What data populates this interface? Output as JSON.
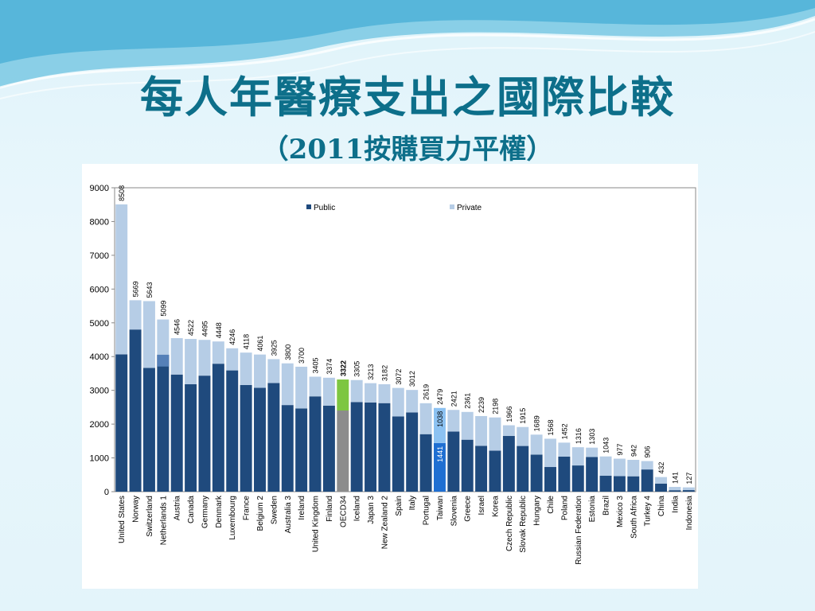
{
  "slide": {
    "title": "每人年醫療支出之國際比較",
    "subtitle": "（2011按購買力平權）"
  },
  "colors": {
    "public": "#1f4a7d",
    "private": "#b6cde6",
    "netherlands_public_extra": "#5580b8",
    "oecd_public": "#8c8c8c",
    "oecd_private": "#7dc641",
    "taiwan_public": "#1f6fd2",
    "taiwan_private": "#8cc2f2",
    "title": "#0d6f8a"
  },
  "chart_data": {
    "type": "bar",
    "stacked": true,
    "ylim": [
      0,
      9000
    ],
    "yticks": [
      0,
      1000,
      2000,
      3000,
      4000,
      5000,
      6000,
      7000,
      8000,
      9000
    ],
    "grid": false,
    "legend_position": "top",
    "legend": [
      "Public",
      "Private"
    ],
    "categories": [
      "United States",
      "Norway",
      "Switzerland",
      "Netherlands 1",
      "Austria",
      "Canada",
      "Germany",
      "Denmark",
      "Luxembourg",
      "France",
      "Belgium 2",
      "Sweden",
      "Australia 3",
      "Ireland",
      "United Kingdom",
      "Finland",
      "OECD34",
      "Iceland",
      "Japan 3",
      "New Zealand 2",
      "Spain",
      "Italy",
      "Portugal",
      "Taiwan",
      "Slovenia",
      "Greece",
      "Israel",
      "Korea",
      "Czech Republic",
      "Slovak Republic",
      "Hungary",
      "Chile",
      "Poland",
      "Russian Federation",
      "Estonia",
      "Brazil",
      "Mexico 3",
      "South Africa",
      "Turkey 4",
      "China",
      "India",
      "Indonesia"
    ],
    "series": [
      {
        "name": "Public",
        "values": [
          4066,
          4802,
          3665,
          4055,
          3469,
          3183,
          3436,
          3789,
          3591,
          3159,
          3076,
          3218,
          2565,
          2465,
          2822,
          2549,
          2403,
          2654,
          2642,
          2622,
          2227,
          2347,
          1703,
          1441,
          1780,
          1539,
          1358,
          1215,
          1649,
          1353,
          1097,
          730,
          1038,
          776,
          1025,
          471,
          459,
          455,
          657,
          240,
          43,
          46
        ]
      },
      {
        "name": "Private",
        "values": [
          4442,
          867,
          1978,
          1044,
          1077,
          1339,
          1059,
          659,
          655,
          959,
          985,
          707,
          1235,
          1235,
          583,
          825,
          919,
          651,
          571,
          560,
          845,
          665,
          916,
          1038,
          641,
          822,
          881,
          983,
          317,
          562,
          592,
          838,
          414,
          540,
          278,
          572,
          518,
          487,
          249,
          192,
          98,
          81
        ]
      }
    ],
    "totals": [
      8508,
      5669,
      5643,
      5099,
      4546,
      4522,
      4495,
      4448,
      4246,
      4118,
      4061,
      3925,
      3800,
      3700,
      3405,
      3374,
      3322,
      3305,
      3213,
      3182,
      3072,
      3012,
      2619,
      2479,
      2421,
      2361,
      2239,
      2198,
      1966,
      1915,
      1689,
      1568,
      1452,
      1316,
      1303,
      1043,
      977,
      942,
      906,
      432,
      141,
      127
    ],
    "inner_labels": [
      {
        "category": "Taiwan",
        "public": "1441",
        "private": "1038"
      }
    ],
    "highlight": [
      "OECD34",
      "Taiwan"
    ]
  }
}
